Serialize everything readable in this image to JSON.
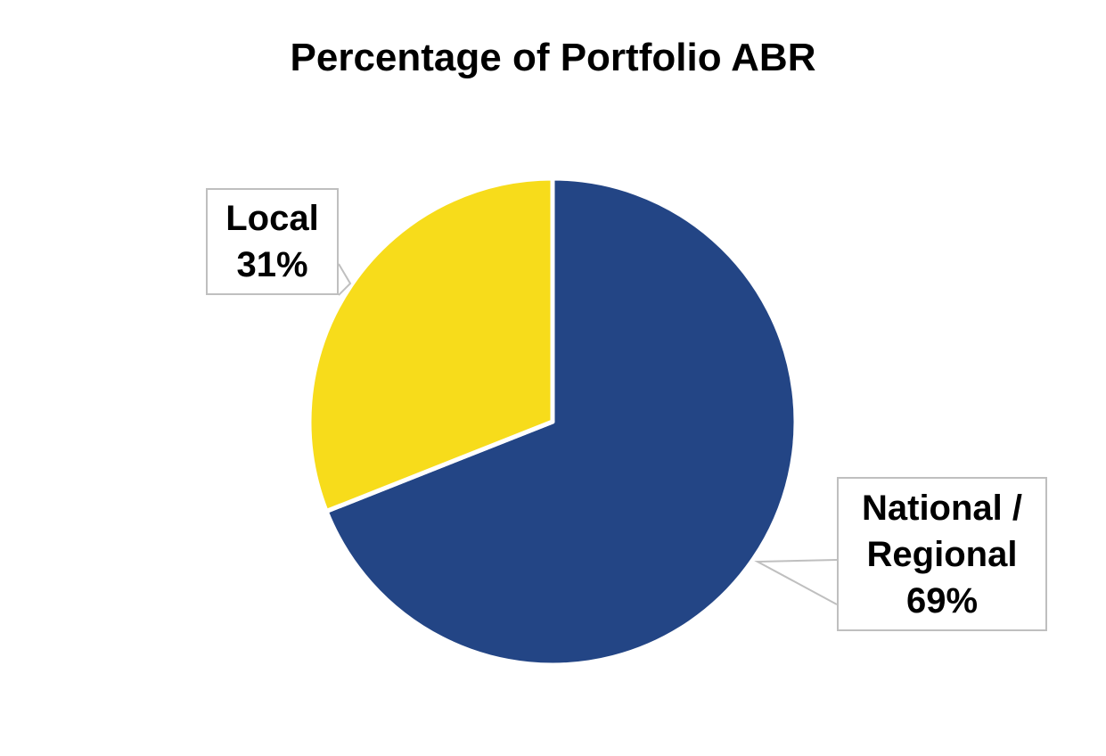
{
  "chart_data": {
    "type": "pie",
    "title": "Percentage of Portfolio ABR",
    "categories": [
      "National / Regional",
      "Local"
    ],
    "values": [
      69,
      31
    ],
    "value_labels": [
      "69%",
      "31%"
    ],
    "colors": [
      "#234585",
      "#f7dc1b"
    ]
  }
}
